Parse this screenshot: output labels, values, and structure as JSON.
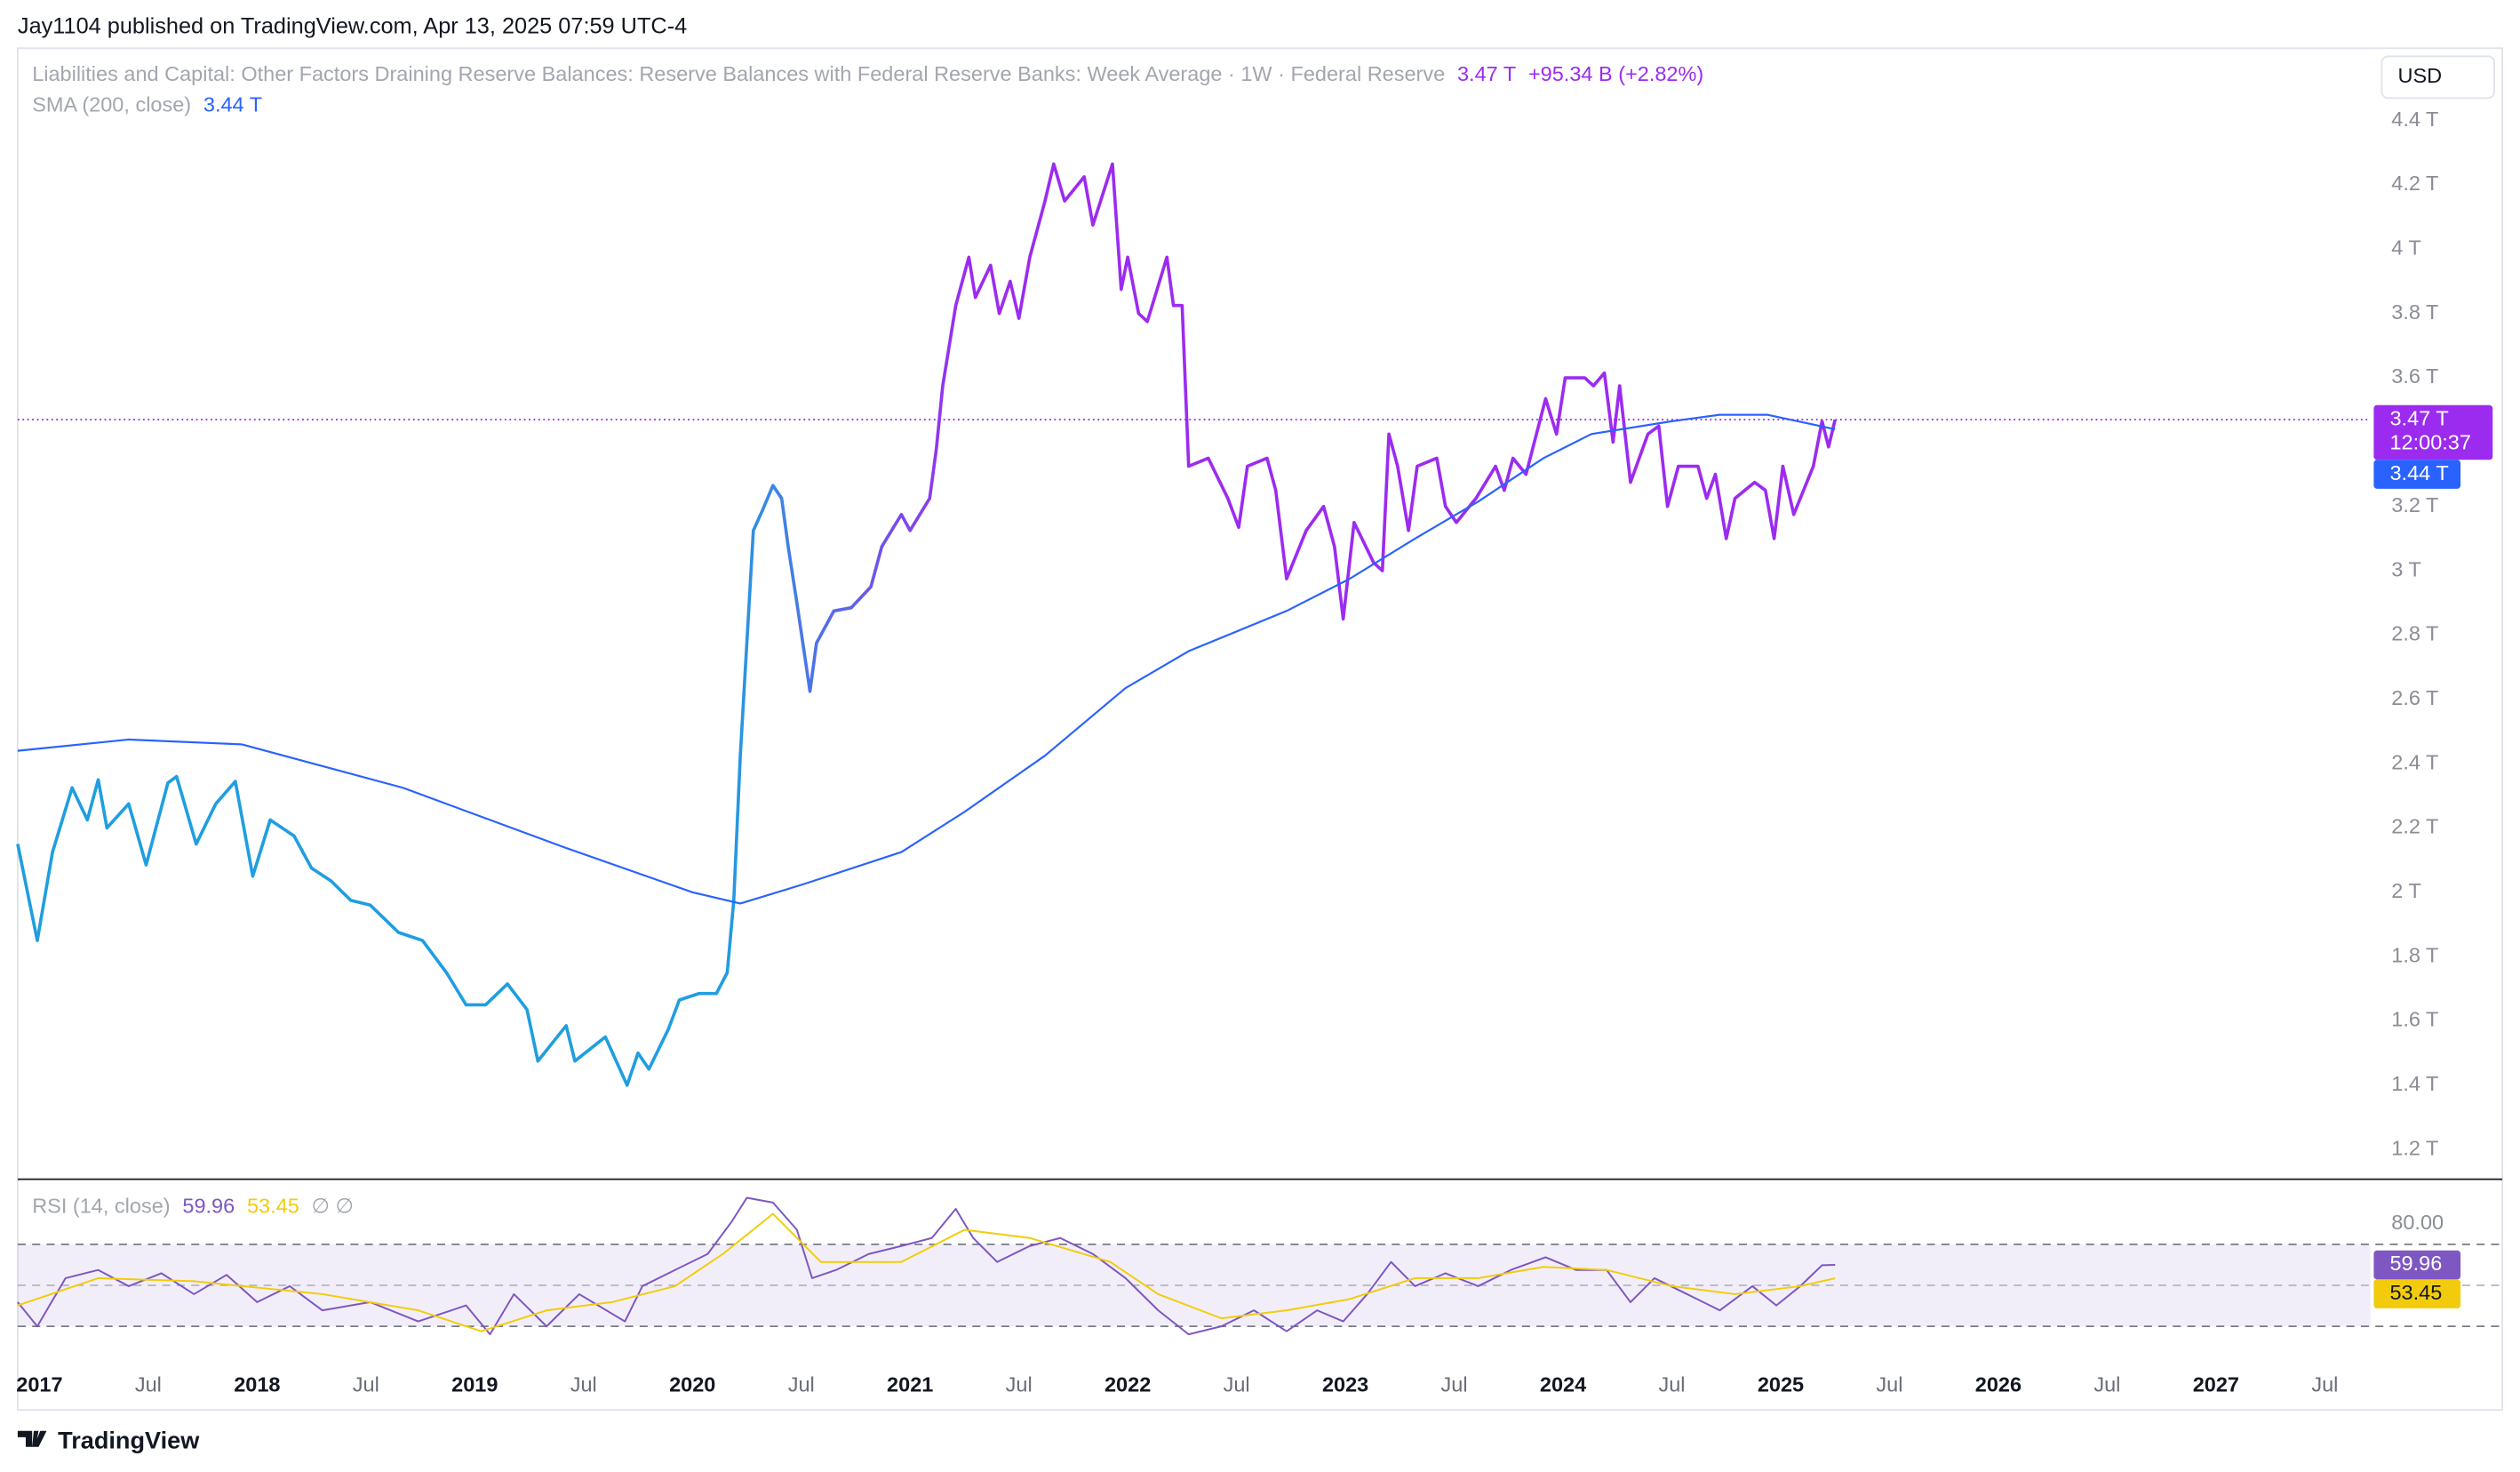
{
  "header": {
    "published": "Jay1104 published on TradingView.com, Apr 13, 2025 07:59 UTC-4"
  },
  "footer": {
    "brand": "TradingView"
  },
  "chart_data": [
    {
      "type": "line",
      "title": "Liabilities and Capital: Other Factors Draining Reserve Balances: Reserve Balances with Federal Reserve Banks: Week Average · 1W · Federal Reserve",
      "price_label": "3.47 T",
      "change_label": "+95.34 B (+2.82%)",
      "countdown": "12:00:37",
      "currency": "USD",
      "xlim": [
        2016.9,
        2027.71
      ],
      "ylim": [
        1.11,
        4.625
      ],
      "yticks": [
        {
          "value": 4.4,
          "label": "4.4 T"
        },
        {
          "value": 4.2,
          "label": "4.2 T"
        },
        {
          "value": 4,
          "label": "4 T"
        },
        {
          "value": 3.8,
          "label": "3.8 T"
        },
        {
          "value": 3.6,
          "label": "3.6 T"
        },
        {
          "value": 3.2,
          "label": "3.2 T"
        },
        {
          "value": 3,
          "label": "3 T"
        },
        {
          "value": 2.8,
          "label": "2.8 T"
        },
        {
          "value": 2.6,
          "label": "2.6 T"
        },
        {
          "value": 2.4,
          "label": "2.4 T"
        },
        {
          "value": 2.2,
          "label": "2.2 T"
        },
        {
          "value": 2,
          "label": "2 T"
        },
        {
          "value": 1.8,
          "label": "1.8 T"
        },
        {
          "value": 1.6,
          "label": "1.6 T"
        },
        {
          "value": 1.4,
          "label": "1.4 T"
        },
        {
          "value": 1.2,
          "label": "1.2 T"
        }
      ],
      "series": [
        {
          "gradient": [
            "#1f9ee0",
            "#9c2bf0"
          ],
          "color": "#9c2bf0",
          "x": [
            2016.9,
            2016.99,
            2017.06,
            2017.15,
            2017.22,
            2017.27,
            2017.31,
            2017.41,
            2017.49,
            2017.59,
            2017.63,
            2017.72,
            2017.81,
            2017.9,
            2017.98,
            2018.06,
            2018.17,
            2018.25,
            2018.34,
            2018.43,
            2018.52,
            2018.65,
            2018.76,
            2018.87,
            2018.96,
            2019.05,
            2019.15,
            2019.24,
            2019.29,
            2019.42,
            2019.46,
            2019.6,
            2019.7,
            2019.75,
            2019.8,
            2019.89,
            2019.94,
            2020.03,
            2020.11,
            2020.16,
            2020.19,
            2020.22,
            2020.25,
            2020.28,
            2020.32,
            2020.37,
            2020.41,
            2020.44,
            2020.48,
            2020.54,
            2020.57,
            2020.65,
            2020.73,
            2020.82,
            2020.87,
            2020.96,
            2021.0,
            2021.09,
            2021.12,
            2021.15,
            2021.21,
            2021.27,
            2021.3,
            2021.37,
            2021.41,
            2021.46,
            2021.5,
            2021.55,
            2021.62,
            2021.66,
            2021.71,
            2021.8,
            2021.84,
            2021.93,
            2021.97,
            2022.0,
            2022.05,
            2022.09,
            2022.18,
            2022.21,
            2022.25,
            2022.28,
            2022.37,
            2022.46,
            2022.51,
            2022.55,
            2022.64,
            2022.68,
            2022.73,
            2022.82,
            2022.9,
            2022.95,
            2022.99,
            2023.04,
            2023.13,
            2023.17,
            2023.2,
            2023.24,
            2023.29,
            2023.33,
            2023.42,
            2023.46,
            2023.51,
            2023.6,
            2023.69,
            2023.73,
            2023.77,
            2023.83,
            2023.92,
            2023.97,
            2024.01,
            2024.1,
            2024.14,
            2024.19,
            2024.23,
            2024.26,
            2024.31,
            2024.39,
            2024.44,
            2024.48,
            2024.53,
            2024.62,
            2024.66,
            2024.7,
            2024.75,
            2024.79,
            2024.88,
            2024.93,
            2024.97,
            2025.01,
            2025.06,
            2025.15,
            2025.19,
            2025.22,
            2025.25
          ],
          "values": [
            2.15,
            1.85,
            2.125,
            2.325,
            2.225,
            2.35,
            2.2,
            2.275,
            2.085,
            2.34,
            2.36,
            2.15,
            2.275,
            2.345,
            2.05,
            2.225,
            2.175,
            2.075,
            2.035,
            1.975,
            1.96,
            1.875,
            1.85,
            1.75,
            1.65,
            1.65,
            1.715,
            1.635,
            1.475,
            1.585,
            1.475,
            1.55,
            1.4,
            1.5,
            1.45,
            1.575,
            1.665,
            1.685,
            1.685,
            1.75,
            1.975,
            2.425,
            2.775,
            3.125,
            3.185,
            3.265,
            3.225,
            3.075,
            2.9,
            2.625,
            2.775,
            2.875,
            2.885,
            2.95,
            3.075,
            3.175,
            3.125,
            3.225,
            3.375,
            3.575,
            3.825,
            3.975,
            3.85,
            3.95,
            3.8,
            3.9,
            3.785,
            3.975,
            4.15,
            4.265,
            4.15,
            4.225,
            4.075,
            4.265,
            3.875,
            3.975,
            3.8,
            3.775,
            3.975,
            3.825,
            3.825,
            3.325,
            3.35,
            3.225,
            3.135,
            3.325,
            3.35,
            3.25,
            2.975,
            3.125,
            3.2,
            3.075,
            2.85,
            3.15,
            3.025,
            3.0,
            3.425,
            3.325,
            3.125,
            3.325,
            3.35,
            3.2,
            3.15,
            3.225,
            3.325,
            3.25,
            3.35,
            3.3,
            3.535,
            3.425,
            3.6,
            3.6,
            3.575,
            3.615,
            3.4,
            3.575,
            3.275,
            3.425,
            3.45,
            3.2,
            3.325,
            3.325,
            3.225,
            3.3,
            3.1,
            3.225,
            3.275,
            3.25,
            3.1,
            3.325,
            3.175,
            3.325,
            3.465,
            3.385,
            3.47
          ]
        },
        {
          "name": "SMA (200, close)",
          "value_label": "3.44 T",
          "color": "#2962ff",
          "x": [
            2016.9,
            2017.41,
            2017.93,
            2018.67,
            2019.41,
            2020.0,
            2020.22,
            2020.51,
            2020.96,
            2021.25,
            2021.62,
            2021.99,
            2022.28,
            2022.73,
            2023.02,
            2023.32,
            2023.61,
            2023.91,
            2024.13,
            2024.5,
            2024.72,
            2024.94,
            2025.25
          ],
          "values": [
            2.44,
            2.475,
            2.46,
            2.325,
            2.14,
            2.0,
            1.965,
            2.025,
            2.125,
            2.25,
            2.425,
            2.635,
            2.75,
            2.875,
            2.975,
            3.1,
            3.215,
            3.35,
            3.425,
            3.465,
            3.485,
            3.485,
            3.44
          ]
        }
      ]
    },
    {
      "type": "line",
      "title": "RSI (14, close)",
      "icons": "∅ ∅",
      "xlim": [
        2016.9,
        2027.71
      ],
      "ylim": [
        10.39,
        101.37
      ],
      "yticks": [
        {
          "value": 80,
          "label": "80.00"
        }
      ],
      "hlines": [
        70,
        50,
        30
      ],
      "band_color": "#7e57c2",
      "xticks": [
        2017,
        {
          "value": 2017.5,
          "label": "Jul"
        },
        2018,
        {
          "value": 2018.5,
          "label": "Jul"
        },
        2019,
        {
          "value": 2019.5,
          "label": "Jul"
        },
        2020,
        {
          "value": 2020.5,
          "label": "Jul"
        },
        2021,
        {
          "value": 2021.5,
          "label": "Jul"
        },
        2022,
        {
          "value": 2022.5,
          "label": "Jul"
        },
        2023,
        {
          "value": 2023.5,
          "label": "Jul"
        },
        2024,
        {
          "value": 2024.5,
          "label": "Jul"
        },
        2025,
        {
          "value": 2025.5,
          "label": "Jul"
        },
        2026,
        {
          "value": 2026.5,
          "label": "Jul"
        },
        2027,
        {
          "value": 2027.5,
          "label": "Jul"
        }
      ],
      "series": [
        {
          "color": "#7e57c2",
          "x": [
            2016.9,
            2016.99,
            2017.12,
            2017.27,
            2017.41,
            2017.56,
            2017.71,
            2017.86,
            2018.0,
            2018.15,
            2018.3,
            2018.52,
            2018.74,
            2018.96,
            2019.07,
            2019.18,
            2019.33,
            2019.48,
            2019.69,
            2019.77,
            2019.92,
            2020.07,
            2020.18,
            2020.25,
            2020.37,
            2020.48,
            2020.55,
            2020.66,
            2020.81,
            2020.96,
            2021.1,
            2021.21,
            2021.29,
            2021.4,
            2021.55,
            2021.69,
            2021.84,
            2021.99,
            2022.14,
            2022.28,
            2022.43,
            2022.58,
            2022.73,
            2022.87,
            2022.99,
            2023.1,
            2023.21,
            2023.32,
            2023.46,
            2023.61,
            2023.76,
            2023.92,
            2024.06,
            2024.2,
            2024.31,
            2024.42,
            2024.57,
            2024.72,
            2024.87,
            2024.98,
            2025.09,
            2025.19,
            2025.25
          ],
          "values": [
            41.8,
            30,
            53.5,
            57.5,
            49.6,
            55.9,
            45.7,
            55.1,
            41.8,
            49.6,
            37.8,
            41.8,
            32.4,
            40.2,
            26.1,
            45.7,
            30,
            45.7,
            32.4,
            49.6,
            57.5,
            65.3,
            81,
            92.7,
            90.4,
            77.1,
            53.5,
            57.5,
            65.3,
            69.2,
            73.1,
            87.3,
            73.1,
            61.4,
            69.2,
            73.1,
            65.3,
            53.5,
            37.8,
            26.1,
            30,
            37.8,
            27.6,
            37.8,
            32.4,
            45.7,
            61.4,
            49.6,
            55.9,
            49.6,
            57.5,
            63.7,
            57.5,
            57.5,
            41.8,
            53.5,
            45.7,
            37.8,
            49.6,
            40.2,
            49.6,
            59.8,
            59.96
          ]
        },
        {
          "color": "#f2cc0c",
          "x": [
            2016.9,
            2017.27,
            2017.71,
            2018.3,
            2018.74,
            2019.03,
            2019.33,
            2019.63,
            2019.92,
            2020.14,
            2020.37,
            2020.59,
            2020.96,
            2021.25,
            2021.55,
            2021.92,
            2022.14,
            2022.43,
            2022.73,
            2023.02,
            2023.32,
            2023.61,
            2023.91,
            2024.2,
            2024.5,
            2024.79,
            2025.09,
            2025.25
          ],
          "values": [
            40.2,
            53.5,
            52,
            45.7,
            37.8,
            27.6,
            37.8,
            41.8,
            49.6,
            65.3,
            84.9,
            61.4,
            61.4,
            77.1,
            73.1,
            61.4,
            45.7,
            33.9,
            37.8,
            43.3,
            53.5,
            53.5,
            59,
            57.5,
            49.6,
            45.7,
            49.6,
            53.45
          ]
        }
      ]
    }
  ]
}
